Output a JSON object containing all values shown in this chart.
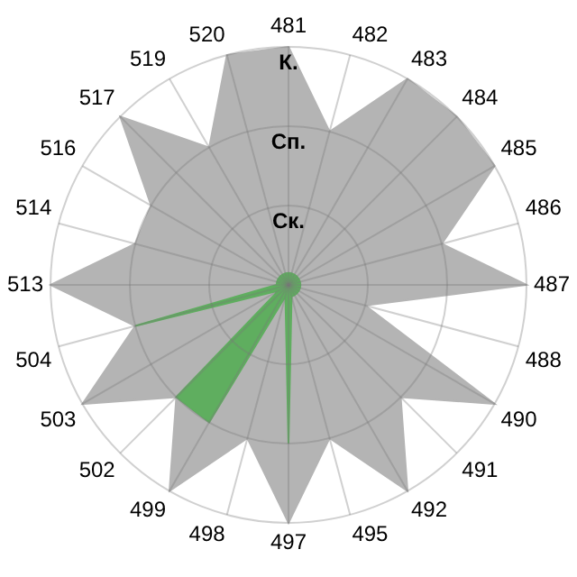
{
  "chart_data": {
    "type": "radar",
    "categories": [
      "481",
      "482",
      "483",
      "484",
      "485",
      "486",
      "487",
      "488",
      "490",
      "491",
      "492",
      "495",
      "497",
      "498",
      "499",
      "502",
      "503",
      "504",
      "513",
      "514",
      "516",
      "517",
      "519",
      "520"
    ],
    "series": [
      {
        "color": "#b4b4b4",
        "values": [
          3,
          2,
          3,
          3,
          3,
          2,
          3,
          1,
          3,
          2,
          3,
          2,
          3,
          2,
          3,
          2,
          3,
          2,
          3,
          2,
          2,
          3,
          2,
          3
        ]
      },
      {
        "color": "#5fae5f",
        "values": [
          0.15,
          0.15,
          0.15,
          0.15,
          0.15,
          0.15,
          0.15,
          0.15,
          0.15,
          0.15,
          0.15,
          0.15,
          2,
          0.15,
          2,
          2,
          0.15,
          2,
          0.15,
          0.15,
          0.15,
          0.15,
          0.15,
          0.15
        ]
      }
    ],
    "ylim": [
      0,
      3
    ],
    "yticks": [
      {
        "value": 1,
        "label": "Ск."
      },
      {
        "value": 2,
        "label": "Сп."
      },
      {
        "value": 3,
        "label": "К."
      }
    ],
    "grid": true,
    "legend": false,
    "marker": "none"
  }
}
